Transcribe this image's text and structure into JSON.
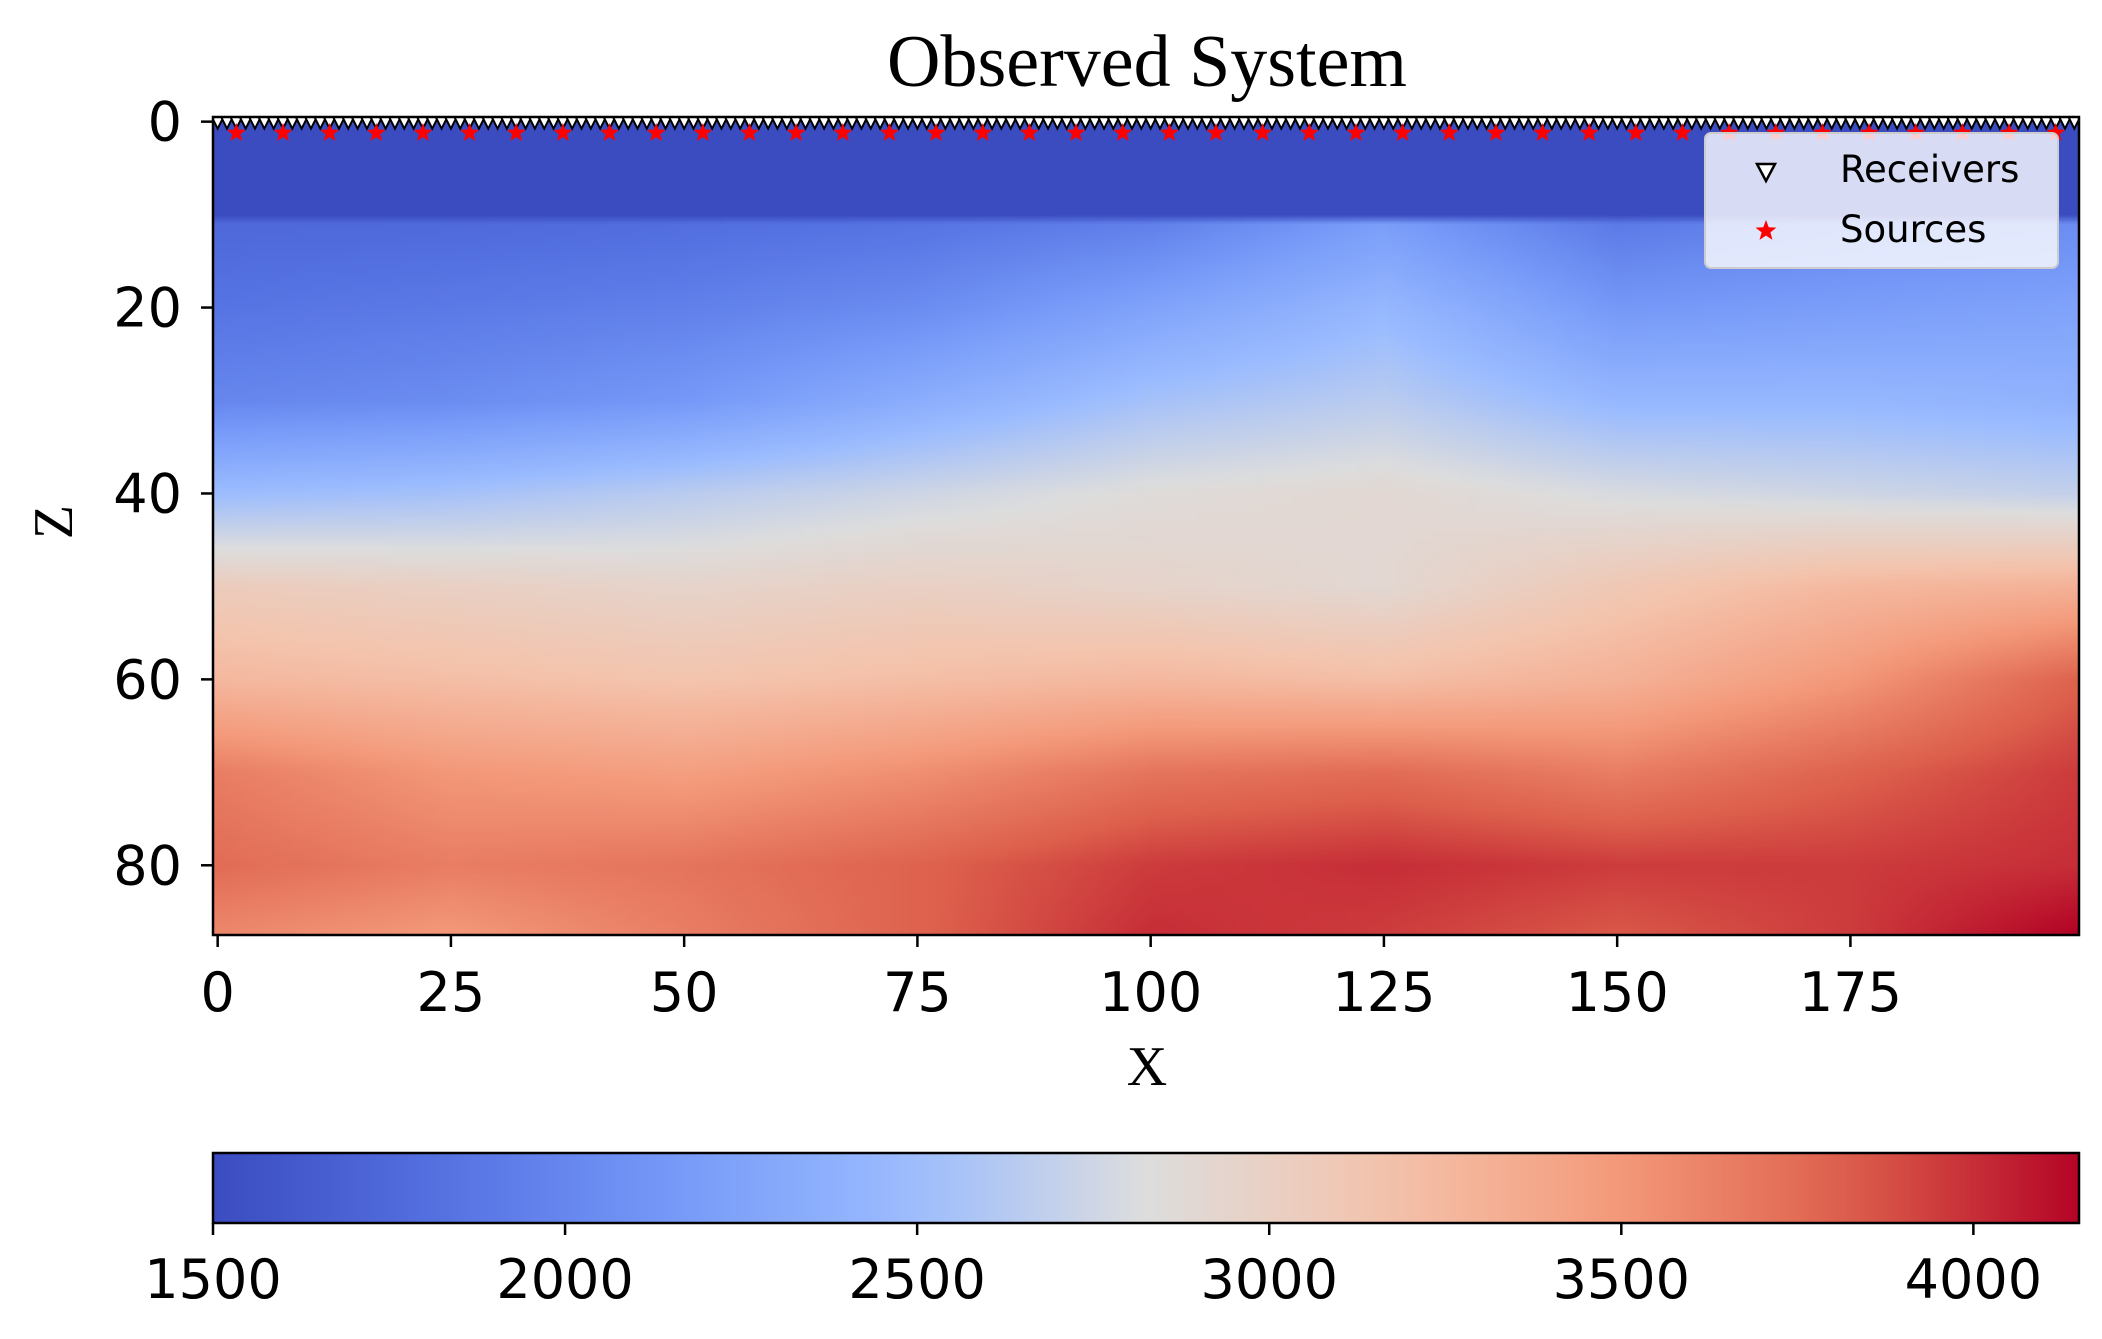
{
  "chart_data": {
    "type": "heatmap",
    "title": "Observed System",
    "xlabel": "X",
    "ylabel": "Z",
    "x_range": [
      0,
      199
    ],
    "z_range": [
      0,
      87
    ],
    "z_inverted": true,
    "x_ticks": [
      "0",
      "25",
      "50",
      "75",
      "100",
      "125",
      "150",
      "175"
    ],
    "x_tick_values": [
      0,
      25,
      50,
      75,
      100,
      125,
      150,
      175
    ],
    "z_ticks": [
      "0",
      "20",
      "40",
      "60",
      "80"
    ],
    "z_tick_values": [
      0,
      20,
      40,
      60,
      80
    ],
    "colormap": "coolwarm",
    "colorbar": {
      "min": 1500,
      "max": 4150,
      "orientation": "horizontal",
      "ticks": [
        "1500",
        "2000",
        "2500",
        "3000",
        "3500",
        "4000"
      ],
      "tick_values": [
        1500,
        2000,
        2500,
        3000,
        3500,
        4000
      ]
    },
    "velocity_model": {
      "description_units": "m/s",
      "water_layer": {
        "z_top": 0,
        "z_bottom": 11,
        "value": 1500
      },
      "x_samples": [
        0,
        25,
        50,
        75,
        100,
        125,
        150,
        175,
        199
      ],
      "z_samples": [
        11,
        20,
        30,
        40,
        50,
        60,
        70,
        80,
        87
      ],
      "values": [
        [
          1750,
          1760,
          1800,
          1850,
          1950,
          2200,
          1900,
          2000,
          2050
        ],
        [
          1850,
          1900,
          1950,
          2050,
          2250,
          2450,
          2150,
          2200,
          2250
        ],
        [
          2000,
          2050,
          2150,
          2350,
          2550,
          2650,
          2450,
          2450,
          2400
        ],
        [
          2500,
          2550,
          2650,
          2750,
          2850,
          2900,
          2800,
          2750,
          2700
        ],
        [
          3050,
          3000,
          2950,
          3000,
          2950,
          2900,
          3100,
          3250,
          3300
        ],
        [
          3250,
          3200,
          3150,
          3200,
          3250,
          3200,
          3300,
          3500,
          3800
        ],
        [
          3650,
          3500,
          3450,
          3550,
          3700,
          3750,
          3650,
          3800,
          3950
        ],
        [
          3750,
          3650,
          3700,
          3800,
          3950,
          4000,
          3950,
          3950,
          4000
        ],
        [
          3600,
          3500,
          3650,
          3800,
          4000,
          3950,
          3850,
          3950,
          4150
        ]
      ]
    },
    "series": [
      {
        "name": "Receivers",
        "marker": "triangle-down",
        "color": "#000000",
        "z": 0,
        "x_start": 0,
        "x_end": 199,
        "x_step": 1
      },
      {
        "name": "Sources",
        "marker": "star",
        "color": "#ff0000",
        "z": 1,
        "x_start": 2,
        "x_end": 197,
        "x_step": 5
      }
    ],
    "legend": {
      "placement": "top-right",
      "entries": [
        "Receivers",
        "Sources"
      ]
    }
  }
}
